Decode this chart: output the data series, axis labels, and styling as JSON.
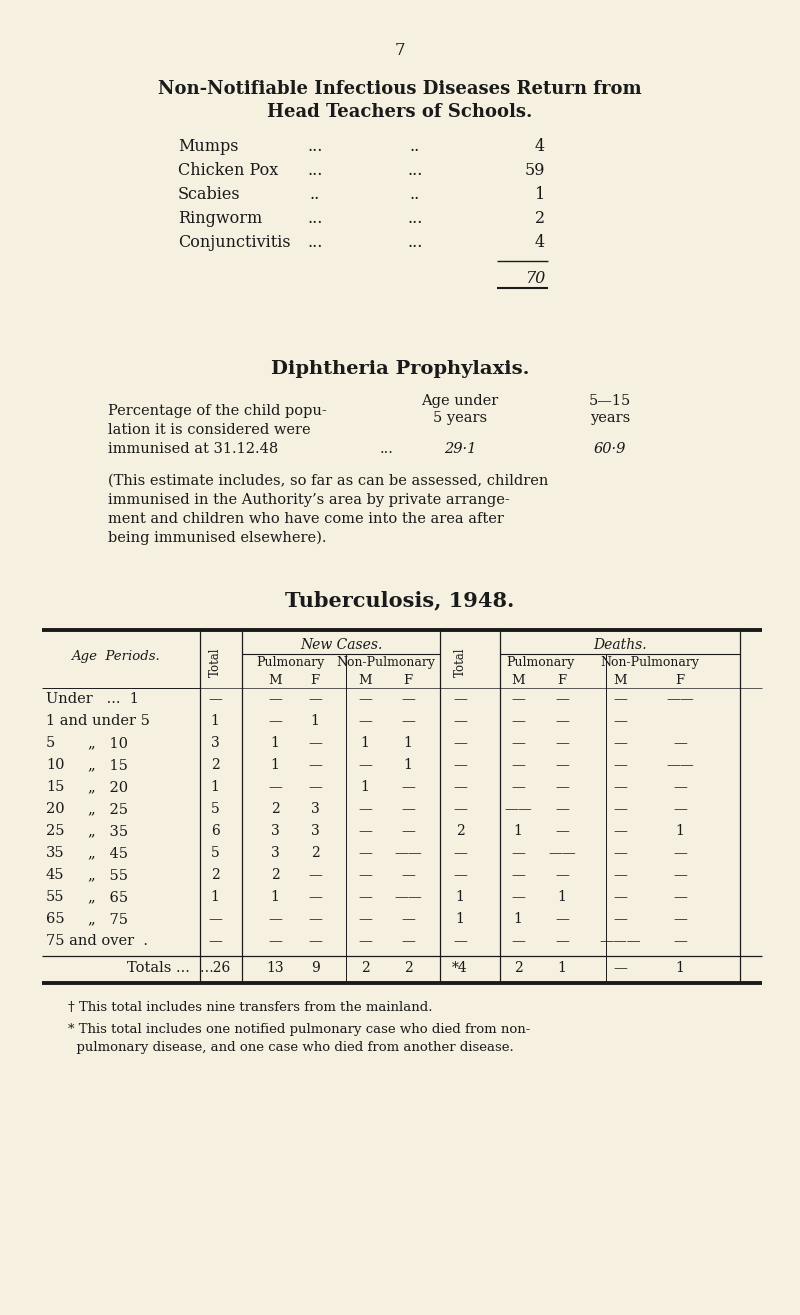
{
  "bg_color": "#f5f0e0",
  "text_color": "#1a1a1a",
  "page_number": "7",
  "section1_title_line1": "Non-Notifiable Infectious Diseases Return from",
  "section1_title_line2": "Head Teachers of Schools.",
  "diseases": [
    {
      "name": "Mumps",
      "dots1": "...",
      "dots2": "..",
      "value": "4"
    },
    {
      "name": "Chicken Pox",
      "dots1": "...",
      "dots2": "...",
      "value": "59"
    },
    {
      "name": "Scabies",
      "dots1": "..",
      "dots2": "..",
      "value": "1"
    },
    {
      "name": "Ringworm",
      "dots1": "...",
      "dots2": "...",
      "value": "2"
    },
    {
      "name": "Conjunctivitis",
      "dots1": "...",
      "dots2": "...",
      "value": "4"
    }
  ],
  "total": "70",
  "section2_title": "Diphtheria Prophylaxis.",
  "diph_val1": "29·1",
  "diph_val2": "60·9",
  "diph_note_lines": [
    "(This estimate includes, so far as can be assessed, children",
    "immunised in the Authority’s area by private arrange-",
    "ment and children who have come into the area after",
    "being immunised elsewhere)."
  ],
  "section3_title": "Tuberculosis, 1948.",
  "footnote1": "† This total includes nine transfers from the mainland.",
  "footnote2_line1": "* This total includes one notified pulmonary case who died from non-",
  "footnote2_line2": "  pulmonary disease, and one case who died from another disease."
}
